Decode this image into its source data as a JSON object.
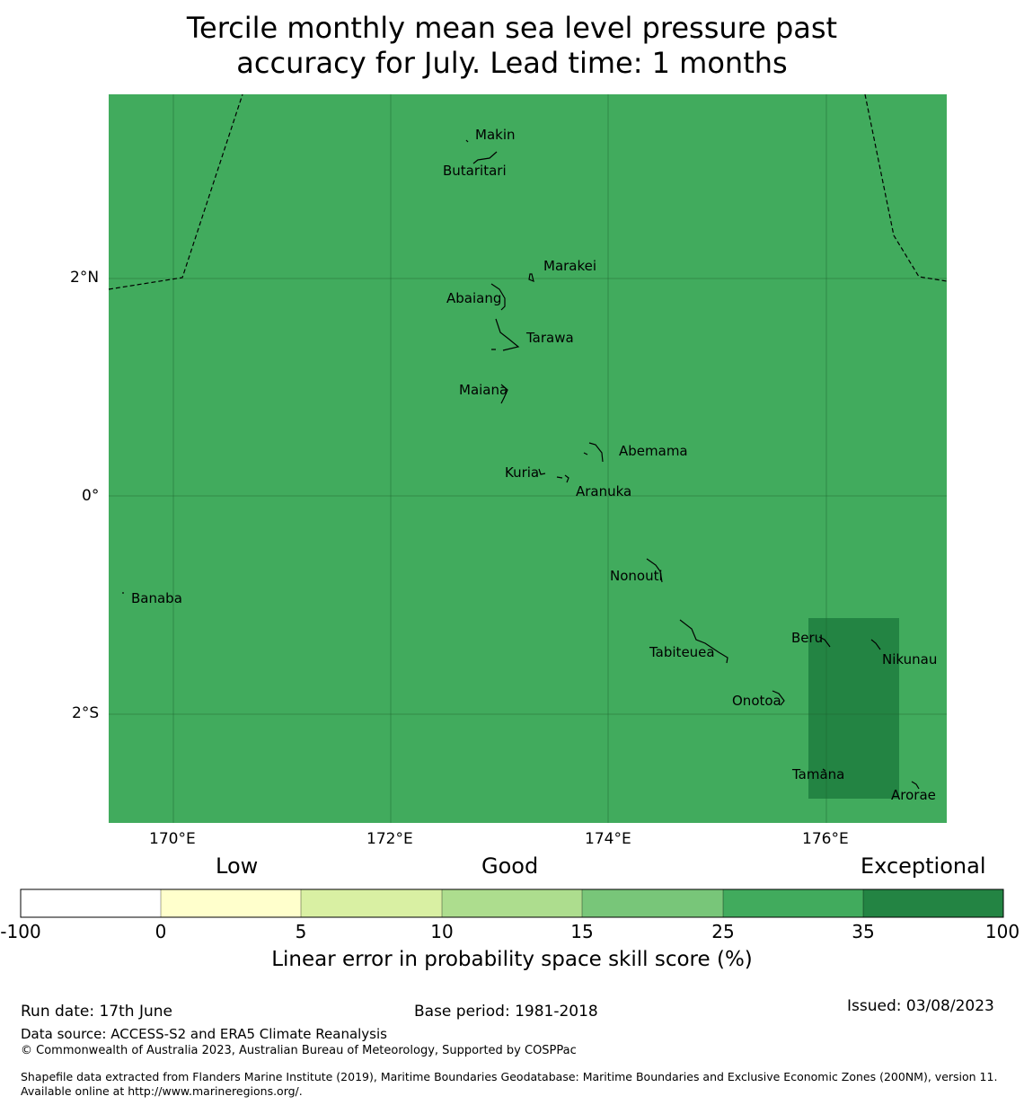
{
  "title": {
    "line1": "Tercile monthly mean sea level pressure past",
    "line2": "accuracy for July. Lead time: 1 months"
  },
  "map": {
    "background_color": "#41ab5d",
    "highlight_color": "#238443",
    "lat_labels": [
      "2°N",
      "0°",
      "2°S"
    ],
    "lon_labels": [
      "170°E",
      "172°E",
      "174°E",
      "176°E"
    ],
    "islands": [
      {
        "name": "Makin"
      },
      {
        "name": "Butaritari"
      },
      {
        "name": "Marakei"
      },
      {
        "name": "Abaiang"
      },
      {
        "name": "Tarawa"
      },
      {
        "name": "Maiana"
      },
      {
        "name": "Abemama"
      },
      {
        "name": "Kuria"
      },
      {
        "name": "Aranuka"
      },
      {
        "name": "Banaba"
      },
      {
        "name": "Nonouti"
      },
      {
        "name": "Beru"
      },
      {
        "name": "Tabiteuea"
      },
      {
        "name": "Nikunau"
      },
      {
        "name": "Onotoa"
      },
      {
        "name": "Tamana"
      },
      {
        "name": "Arorae"
      }
    ]
  },
  "colorbar": {
    "categories": {
      "low": "Low",
      "good": "Good",
      "exceptional": "Exceptional"
    },
    "ticks": [
      "-100",
      "0",
      "5",
      "10",
      "15",
      "25",
      "35",
      "100"
    ],
    "colors": [
      "#ffffff",
      "#ffffcc",
      "#d9f0a3",
      "#addd8e",
      "#78c679",
      "#41ab5d",
      "#238443"
    ],
    "label": "Linear error in probability space skill score (%)"
  },
  "footer": {
    "run_date": "Run date: 17th June",
    "base_period": "Base period: 1981-2018",
    "issued": "Issued: 03/08/2023",
    "data_source": "Data source: ACCESS-S2 and ERA5 Climate Reanalysis",
    "copyright": "© Commonwealth of Australia 2023, Australian Bureau of Meteorology, Supported by COSPPac",
    "shapefile": "Shapefile data extracted from Flanders Marine Institute (2019), Maritime Boundaries Geodatabase: Maritime Boundaries and Exclusive Economic Zones (200NM), version 11. Available online at http://www.marineregions.org/."
  }
}
